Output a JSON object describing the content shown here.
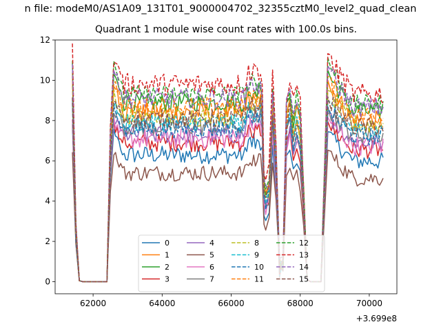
{
  "figure": {
    "suptitle": "n file: modeM0/AS1A09_131T01_9000004702_32355cztM0_level2_quad_clean",
    "title": "Quadrant 1 module wise count rates with 100.0s bins."
  },
  "chart_data": {
    "type": "line",
    "title": "Quadrant 1 module wise count rates with 100.0s bins.",
    "xlabel": "",
    "ylabel": "",
    "x_offset_label": "+3.699e8",
    "xlim": [
      60900,
      70800
    ],
    "ylim": [
      -0.6,
      12.0
    ],
    "xticks": [
      62000,
      64000,
      66000,
      68000,
      70000
    ],
    "xtick_labels": [
      "62000",
      "64000",
      "66000",
      "68000",
      "70000"
    ],
    "yticks": [
      0,
      2,
      4,
      6,
      8,
      10,
      12
    ],
    "ytick_labels": [
      "0",
      "2",
      "4",
      "6",
      "8",
      "10",
      "12"
    ],
    "grid": false,
    "legend_position": "lower-center",
    "legend_columns": 4,
    "segments": [
      {
        "x_start": 61400,
        "x_end": 62400,
        "shape": "drop"
      },
      {
        "x_start": 62500,
        "x_end": 66900,
        "shape": "flat"
      },
      {
        "x_start": 66950,
        "x_end": 67150,
        "shape": "dip"
      },
      {
        "x_start": 67200,
        "x_end": 67300,
        "shape": "peak"
      },
      {
        "x_start": 67400,
        "x_end": 67500,
        "shape": "dip"
      },
      {
        "x_start": 67600,
        "x_end": 68100,
        "shape": "peak"
      },
      {
        "x_start": 68200,
        "x_end": 68600,
        "shape": "zero"
      },
      {
        "x_start": 68800,
        "x_end": 70400,
        "shape": "recover"
      }
    ],
    "series": [
      {
        "name": "0",
        "color": "#1f77b4",
        "dash": "solid",
        "level": 6.3,
        "amp": 0.45,
        "start": 7.3
      },
      {
        "name": "1",
        "color": "#ff7f0e",
        "dash": "solid",
        "level": 8.4,
        "amp": 0.5,
        "start": 9.8
      },
      {
        "name": "2",
        "color": "#2ca02c",
        "dash": "solid",
        "level": 8.9,
        "amp": 0.45,
        "start": 10.3
      },
      {
        "name": "3",
        "color": "#d62728",
        "dash": "solid",
        "level": 6.9,
        "amp": 0.45,
        "start": 7.8
      },
      {
        "name": "4",
        "color": "#9467bd",
        "dash": "solid",
        "level": 7.3,
        "amp": 0.45,
        "start": 8.2
      },
      {
        "name": "5",
        "color": "#8c564b",
        "dash": "solid",
        "level": 5.4,
        "amp": 0.4,
        "start": 6.4
      },
      {
        "name": "6",
        "color": "#e377c2",
        "dash": "solid",
        "level": 7.1,
        "amp": 0.5,
        "start": 8.0
      },
      {
        "name": "7",
        "color": "#7f7f7f",
        "dash": "solid",
        "level": 7.7,
        "amp": 0.45,
        "start": 8.5
      },
      {
        "name": "8",
        "color": "#bcbd22",
        "dash": "dashed",
        "level": 8.2,
        "amp": 0.5,
        "start": 9.3
      },
      {
        "name": "9",
        "color": "#17becf",
        "dash": "dashed",
        "level": 7.9,
        "amp": 0.45,
        "start": 8.8
      },
      {
        "name": "10",
        "color": "#1f77b4",
        "dash": "dashed",
        "level": 7.6,
        "amp": 0.45,
        "start": 8.5
      },
      {
        "name": "11",
        "color": "#ff7f0e",
        "dash": "dashed",
        "level": 8.7,
        "amp": 0.5,
        "start": 10.0
      },
      {
        "name": "12",
        "color": "#2ca02c",
        "dash": "dashed",
        "level": 9.3,
        "amp": 0.45,
        "start": 10.9
      },
      {
        "name": "13",
        "color": "#d62728",
        "dash": "dashed",
        "level": 9.8,
        "amp": 0.55,
        "start": 11.1
      },
      {
        "name": "14",
        "color": "#9467bd",
        "dash": "dashed",
        "level": 9.1,
        "amp": 0.5,
        "start": 10.5
      },
      {
        "name": "15",
        "color": "#8c564b",
        "dash": "dashed",
        "level": 8.1,
        "amp": 0.45,
        "start": 9.0
      }
    ]
  }
}
